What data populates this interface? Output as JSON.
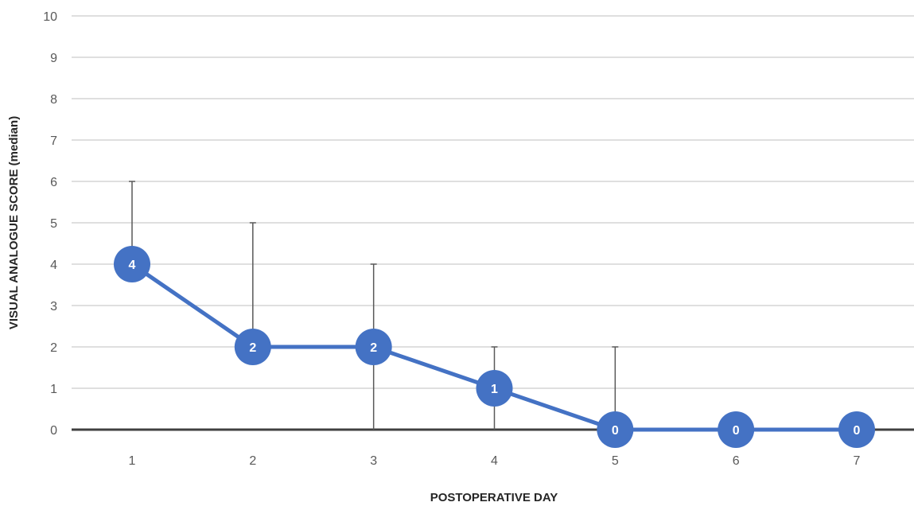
{
  "chart_data": {
    "type": "line",
    "title": "",
    "xlabel": "POSTOPERATIVE DAY",
    "ylabel": "VISUAL ANALOGUE SCORE (median)",
    "categories": [
      "1",
      "2",
      "3",
      "4",
      "5",
      "6",
      "7"
    ],
    "series": [
      {
        "values": [
          4,
          2,
          2,
          1,
          0,
          0,
          0
        ],
        "data_labels": [
          "4",
          "2",
          "2",
          "1",
          "0",
          "0",
          "0"
        ],
        "error_upper": [
          6,
          5,
          4,
          2,
          2,
          0,
          0
        ],
        "error_lower": [
          4,
          2,
          0,
          0,
          0,
          0,
          0
        ]
      }
    ],
    "ylim": [
      0,
      10
    ],
    "yticks": [
      "0",
      "1",
      "2",
      "3",
      "4",
      "5",
      "6",
      "7",
      "8",
      "9",
      "10"
    ],
    "grid": true,
    "legend": "none",
    "colors": {
      "series": "#4472C4",
      "marker_text": "#FFFFFF",
      "grid": "#BFBFBF",
      "error_bar": "#595959",
      "zero_axis": "#404040"
    }
  }
}
